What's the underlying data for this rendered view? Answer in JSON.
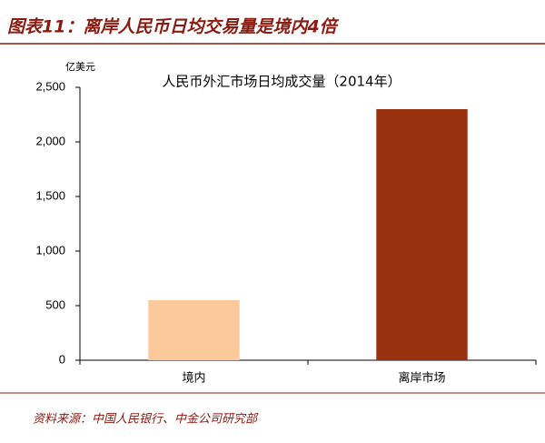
{
  "header": "图表11：离岸人民币日均交易量是境内4倍",
  "source": "资料来源：中国人民银行、中金公司研究部",
  "chart_data": {
    "type": "bar",
    "title": "人民币外汇市场日均成交量（2014年）",
    "y_unit": "亿美元",
    "categories": [
      "境内",
      "离岸市场"
    ],
    "values": [
      550,
      2300
    ],
    "colors": [
      "#fbc99a",
      "#98310f"
    ],
    "ylim": [
      0,
      2500
    ],
    "yticks": [
      0,
      500,
      {
        "value": 1000,
        "label": "1,000"
      },
      {
        "value": 1500,
        "label": "1,500"
      },
      {
        "value": 2000,
        "label": "2,000"
      },
      {
        "value": 2500,
        "label": "2,500"
      }
    ]
  }
}
